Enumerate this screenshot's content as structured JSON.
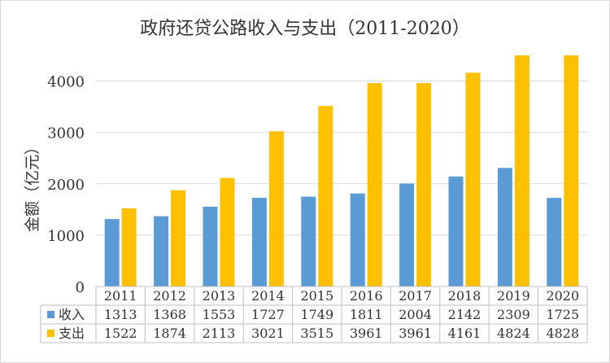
{
  "chart_data": {
    "type": "bar",
    "title": "政府还贷公路收入与支出（2011-2020）",
    "ylabel": "金额（亿元）",
    "xlabel": "",
    "categories": [
      "2011",
      "2012",
      "2013",
      "2014",
      "2015",
      "2016",
      "2017",
      "2018",
      "2019",
      "2020"
    ],
    "series": [
      {
        "name": "收入",
        "color": "#5b9bd5",
        "values": [
          1313,
          1368,
          1553,
          1727,
          1749,
          1811,
          2004,
          2142,
          2309,
          1725
        ]
      },
      {
        "name": "支出",
        "color": "#ffc000",
        "values": [
          1522,
          1874,
          2113,
          3021,
          3515,
          3961,
          3961,
          4161,
          4824,
          4828
        ]
      }
    ],
    "ylim": [
      0,
      4500
    ],
    "yticks": [
      0,
      1000,
      2000,
      3000,
      4000
    ],
    "grid": true,
    "legend": "data-table",
    "data_table": true
  }
}
